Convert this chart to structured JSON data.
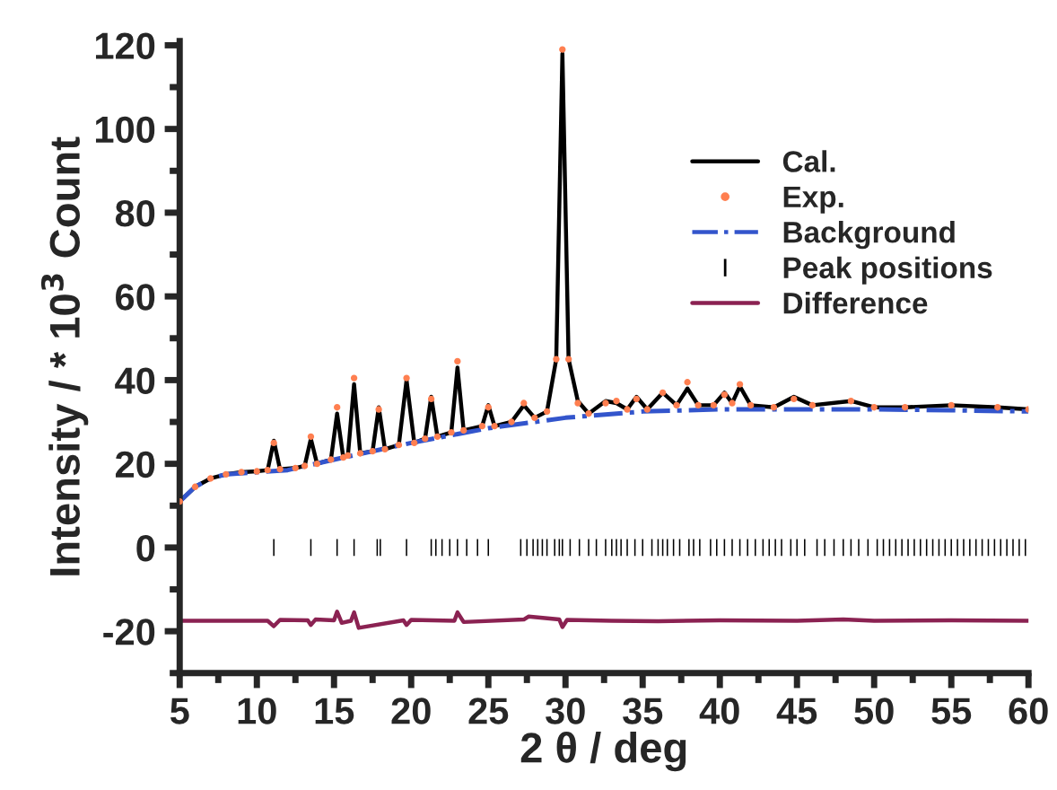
{
  "chart_data": {
    "type": "line",
    "xlabel": "2 θ / deg",
    "ylabel": "Intensity / * 10$^{3}$ Count",
    "xlim": [
      5,
      60
    ],
    "xticks": [
      5,
      10,
      15,
      20,
      25,
      30,
      35,
      40,
      45,
      50,
      55,
      60
    ],
    "ylim": [
      -30,
      121
    ],
    "yticks": [
      -20,
      0,
      20,
      40,
      60,
      80,
      100,
      120
    ],
    "grid": false,
    "legend": "top right",
    "series": [
      {
        "name": "Cal.",
        "color": "#000000",
        "line_style": "solid",
        "marker": "none",
        "x": [
          5,
          6,
          7,
          8,
          9,
          10,
          10.7,
          11.1,
          11.5,
          12.5,
          13.1,
          13.5,
          13.9,
          14.8,
          15.2,
          15.6,
          15.9,
          16.3,
          16.7,
          17.5,
          17.9,
          18.3,
          19.2,
          19.7,
          20.2,
          20.9,
          21.3,
          21.7,
          22.6,
          23.0,
          23.4,
          24.6,
          25.0,
          25.4,
          26.5,
          27.3,
          28,
          28.8,
          29.4,
          29.8,
          30.2,
          30.8,
          31.5,
          32.6,
          33.3,
          34,
          34.6,
          35.3,
          36.3,
          37.2,
          37.9,
          38.6,
          39.6,
          40.3,
          40.8,
          41.3,
          42,
          43.5,
          44.8,
          46,
          48.5,
          50,
          52,
          55,
          58,
          60
        ],
        "values": [
          11,
          14.5,
          16.5,
          17.5,
          18,
          18.2,
          18.5,
          25.5,
          18.7,
          19,
          19.5,
          26,
          20,
          21,
          32,
          21.5,
          22,
          39,
          22.5,
          23,
          33.5,
          23.5,
          24.5,
          40,
          25,
          26,
          36,
          26.5,
          27.5,
          43,
          28,
          29,
          34,
          29,
          30,
          34,
          31,
          32.5,
          45,
          118,
          45,
          35,
          32,
          35,
          34.5,
          33,
          36,
          33,
          37,
          34,
          38,
          34,
          34,
          37,
          34.5,
          38.5,
          34,
          33.5,
          36,
          34,
          35,
          33.5,
          33.5,
          34,
          33.5,
          33
        ]
      },
      {
        "name": "Exp.",
        "type": "scatter",
        "color": "#ff7f50",
        "marker": "circle",
        "x": [
          5,
          6,
          7,
          8,
          9,
          10,
          10.7,
          11.1,
          11.5,
          12.5,
          13.1,
          13.5,
          13.9,
          14.8,
          15.2,
          15.6,
          15.9,
          16.3,
          16.7,
          17.5,
          17.9,
          18.3,
          19.2,
          19.7,
          20.2,
          20.9,
          21.3,
          21.7,
          22.6,
          23.0,
          23.4,
          24.6,
          25.0,
          25.4,
          26.5,
          27.3,
          28,
          28.8,
          29.4,
          29.8,
          30.2,
          30.8,
          31.5,
          32.6,
          33.3,
          34,
          34.6,
          35.3,
          36.3,
          37.2,
          37.9,
          38.6,
          39.6,
          40.3,
          40.8,
          41.3,
          42,
          43.5,
          44.8,
          46,
          48.5,
          50,
          52,
          55,
          58,
          60
        ],
        "values": [
          11,
          14.5,
          16.5,
          17.5,
          18,
          18.2,
          18.5,
          25,
          18.7,
          19,
          19.5,
          26.5,
          20,
          21,
          33.5,
          21.5,
          22,
          40.5,
          22.5,
          23,
          33,
          23.5,
          24.5,
          40.5,
          25,
          26,
          35.5,
          26.5,
          27.5,
          44.5,
          28,
          29,
          33.5,
          29,
          30,
          34.5,
          31,
          32.5,
          45,
          119,
          45,
          34.5,
          32,
          34.5,
          35,
          33,
          35.5,
          33,
          37,
          34,
          39.5,
          34,
          34,
          36.5,
          34.5,
          39,
          34,
          33.5,
          35.5,
          34,
          35,
          33.5,
          33.5,
          34,
          33.5,
          33
        ]
      },
      {
        "name": "Background",
        "color": "#3355cc",
        "line_style": "dashdot",
        "marker": "none",
        "x": [
          5,
          6,
          7,
          8,
          10,
          12,
          15,
          20,
          25,
          30,
          35,
          40,
          45,
          50,
          55,
          60
        ],
        "values": [
          11,
          14.5,
          16.5,
          17.5,
          18,
          18.5,
          21,
          25,
          28.5,
          31,
          32.5,
          33,
          33,
          33,
          32.8,
          32.5
        ]
      },
      {
        "name": "Peak positions",
        "type": "bar",
        "color": "#000000",
        "base": [
          -2,
          -2,
          -2,
          -2,
          -2,
          -2,
          -2,
          -2,
          -2,
          -2,
          -2,
          -2,
          -2,
          -2,
          -2,
          -2,
          -2,
          -2,
          -2,
          -2,
          -2,
          -2,
          -2,
          -2,
          -2,
          -2,
          -2,
          -2,
          -2,
          -2,
          -2,
          -2,
          -2,
          -2,
          -2,
          -2,
          -2,
          -2,
          -2,
          -2,
          -2,
          -2,
          -2,
          -2,
          -2,
          -2,
          -2,
          -2,
          -2,
          -2,
          -2,
          -2,
          -2,
          -2,
          -2,
          -2,
          -2,
          -2,
          -2,
          -2,
          -2,
          -2,
          -2,
          -2,
          -2,
          -2,
          -2,
          -2,
          -2,
          -2,
          -2,
          -2,
          -2,
          -2,
          -2,
          -2,
          -2,
          -2,
          -2,
          -2,
          -2,
          -2,
          -2,
          -2,
          -2,
          -2,
          -2,
          -2,
          -2,
          -2
        ],
        "x": [
          11.1,
          13.5,
          15.2,
          16.3,
          17.8,
          18.0,
          19.7,
          21.3,
          21.6,
          22.0,
          22.5,
          23.0,
          23.6,
          24.3,
          25.0,
          27.1,
          27.5,
          27.9,
          28.2,
          28.5,
          28.8,
          29.3,
          29.6,
          29.8,
          30.3,
          30.9,
          31.5,
          32.0,
          32.6,
          33.0,
          33.3,
          33.6,
          34.0,
          34.5,
          35.0,
          35.6,
          36.0,
          36.3,
          36.6,
          37.0,
          37.4,
          38.0,
          38.3,
          38.7,
          39.4,
          39.8,
          40.3,
          40.8,
          41.3,
          41.8,
          42.3,
          42.8,
          43.2,
          43.6,
          44.0,
          44.6,
          45.0,
          45.5,
          46.3,
          46.8,
          47.4,
          48.0,
          48.5,
          49.0,
          49.6,
          50.2,
          50.6,
          51.0,
          51.4,
          51.8,
          52.2,
          52.6,
          53.0,
          53.4,
          53.8,
          54.2,
          54.6,
          55.0,
          55.4,
          55.8,
          56.2,
          56.6,
          57.0,
          57.4,
          57.8,
          58.2,
          58.6,
          59.0,
          59.4,
          59.8
        ],
        "values": [
          4,
          4,
          4,
          4,
          4,
          4,
          4,
          4,
          4,
          4,
          4,
          4,
          4,
          4,
          4,
          4,
          4,
          4,
          4,
          4,
          4,
          4,
          4,
          4,
          4,
          4,
          4,
          4,
          4,
          4,
          4,
          4,
          4,
          4,
          4,
          4,
          4,
          4,
          4,
          4,
          4,
          4,
          4,
          4,
          4,
          4,
          4,
          4,
          4,
          4,
          4,
          4,
          4,
          4,
          4,
          4,
          4,
          4,
          4,
          4,
          4,
          4,
          4,
          4,
          4,
          4,
          4,
          4,
          4,
          4,
          4,
          4,
          4,
          4,
          4,
          4,
          4,
          4,
          4,
          4,
          4,
          4,
          4,
          4,
          4,
          4,
          4,
          4,
          4,
          4
        ]
      },
      {
        "name": "Difference",
        "color": "#8b2252",
        "line_style": "solid",
        "marker": "none",
        "x": [
          5,
          8,
          10.7,
          11.1,
          11.5,
          13.3,
          13.5,
          13.8,
          15.0,
          15.2,
          15.5,
          16.1,
          16.3,
          16.6,
          19.5,
          19.7,
          20,
          22.8,
          23.0,
          23.4,
          27.3,
          27.6,
          29.6,
          29.8,
          30.1,
          33,
          36,
          40,
          45,
          48,
          50,
          55,
          60
        ],
        "values": [
          -17.5,
          -17.5,
          -17.5,
          -18.8,
          -17.3,
          -17.4,
          -18.5,
          -17.2,
          -17.4,
          -15.3,
          -18,
          -17.5,
          -15.5,
          -19.2,
          -17.4,
          -18.5,
          -17.3,
          -17.5,
          -15.5,
          -17.8,
          -17.2,
          -16.5,
          -17.2,
          -19,
          -17.3,
          -17.5,
          -17.6,
          -17.4,
          -17.5,
          -17.2,
          -17.5,
          -17.4,
          -17.5
        ]
      }
    ]
  }
}
